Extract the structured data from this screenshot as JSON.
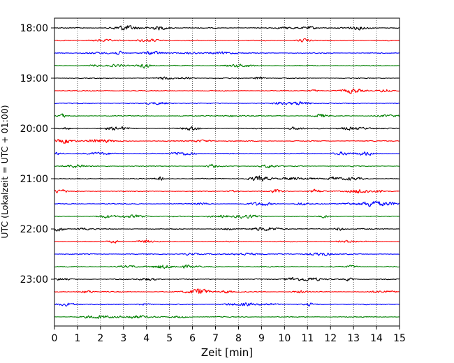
{
  "chart_data": {
    "type": "line",
    "title": "",
    "xlabel": "Zeit  [min]",
    "ylabel": "UTC (Lokalzeit = UTC + 01:00)",
    "xlim": [
      0,
      15
    ],
    "x_ticks": [
      "0",
      "1",
      "2",
      "3",
      "4",
      "5",
      "6",
      "7",
      "8",
      "9",
      "10",
      "11",
      "12",
      "13",
      "14",
      "15"
    ],
    "y_ticks": [
      "18:00",
      "19:00",
      "20:00",
      "21:00",
      "22:00",
      "23:00"
    ],
    "trace_interval_min": 15,
    "traces_start": "18:00",
    "trace_count": 24,
    "trace_colors": [
      "#000000",
      "#ff0000",
      "#0000ff",
      "#008000"
    ],
    "grid": "vertical dotted",
    "legend": "none"
  }
}
